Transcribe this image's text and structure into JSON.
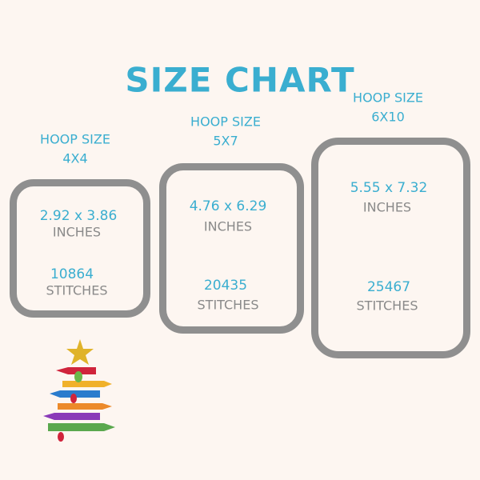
{
  "title": "SIZE CHART",
  "hoops": [
    {
      "label": "HOOP SIZE",
      "size": "4X4",
      "dimensions": "2.92 x 3.86",
      "dim_unit": "INCHES",
      "stitches": "10864",
      "stitch_unit": "STITCHES"
    },
    {
      "label": "HOOP SIZE",
      "size": "5X7",
      "dimensions": "4.76 x 6.29",
      "dim_unit": "INCHES",
      "stitches": "20435",
      "stitch_unit": "STITCHES"
    },
    {
      "label": "HOOP SIZE",
      "size": "6X10",
      "dimensions": "5.55 x 7.32",
      "dim_unit": "INCHES",
      "stitches": "25467",
      "stitch_unit": "STITCHES"
    }
  ],
  "colors": {
    "accent": "#3aaed0",
    "frame": "#8f8f8f",
    "background": "#fdf6f1"
  }
}
